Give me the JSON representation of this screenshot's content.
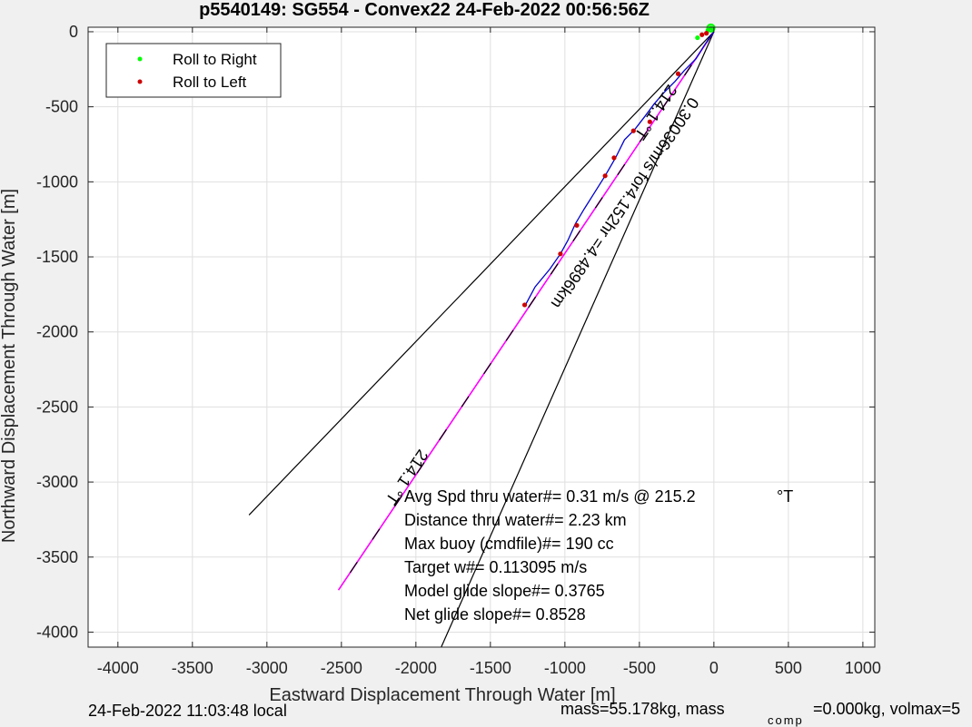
{
  "chart_data": {
    "type": "line",
    "title": "p5540149: SG554 - Convex22 24-Feb-2022 00:56:56Z",
    "xlabel": "Eastward Displacement Through Water [m]",
    "ylabel": "Northward Displacement Through Water [m]",
    "xlim": [
      -4200,
      1080
    ],
    "ylim": [
      -4100,
      30
    ],
    "xticks": [
      -4000,
      -3500,
      -3000,
      -2500,
      -2000,
      -1500,
      -1000,
      -500,
      0,
      500,
      1000
    ],
    "yticks": [
      0,
      -500,
      -1000,
      -1500,
      -2000,
      -2500,
      -3000,
      -3500,
      -4000
    ],
    "grid": true,
    "legend": {
      "placement": "top-left",
      "entries": [
        "Roll to Right",
        "Roll to Left"
      ]
    },
    "colors": {
      "roll_right": "#00ff00",
      "roll_left": "#cc0000",
      "track": "#0000cc",
      "heading": "#ff00ff",
      "cone": "#000000"
    },
    "track": {
      "x": [
        0,
        -30,
        -70,
        -120,
        -200,
        -260,
        -330,
        -400,
        -460,
        -530,
        -600,
        -660,
        -730,
        -800,
        -870,
        -930,
        -980,
        -1030,
        -1100,
        -1200,
        -1270
      ],
      "y": [
        0,
        -40,
        -100,
        -180,
        -260,
        -330,
        -400,
        -480,
        -560,
        -650,
        -720,
        -840,
        -960,
        -1070,
        -1180,
        -1280,
        -1390,
        -1480,
        -1580,
        -1700,
        -1830
      ]
    },
    "roll_right_points": {
      "x": [
        -10,
        -20,
        -40,
        -110
      ],
      "y": [
        20,
        25,
        10,
        -40
      ]
    },
    "roll_left_points": {
      "x": [
        -50,
        -80,
        -240,
        -430,
        -540,
        -670,
        -730,
        -920,
        -1030,
        -1270
      ],
      "y": [
        -10,
        -20,
        -280,
        -600,
        -660,
        -840,
        -960,
        -1290,
        -1480,
        -1820
      ]
    },
    "heading_line": {
      "x": [
        0,
        -2520
      ],
      "y": [
        0,
        -3720
      ]
    },
    "cone_lines": [
      {
        "x": [
          0,
          -3120
        ],
        "y": [
          0,
          -3220
        ]
      },
      {
        "x": [
          0,
          -1830
        ],
        "y": [
          0,
          -4100
        ]
      }
    ],
    "rotated_labels": [
      "214.1 °T",
      "0.30036m/s for4.152hr =4.4896km",
      "214.1 °T"
    ],
    "annotations": [
      "Avg Spd thru water#=  0.31 m/s @ 215.2",
      "°T",
      "Distance thru water#=  2.23 km",
      "Max buoy (cmdfile)#= 190 cc",
      "Target w#= 0.113095 m/s",
      "Model glide slope#= 0.3765",
      "Net glide slope#= 0.8528"
    ]
  },
  "footer": {
    "timestamp": "24-Feb-2022 11:03:48 local",
    "mass": "mass=55.178kg, mass",
    "mass_sub": "comp",
    "mass_rest": "=0.000kg, volmax=5"
  }
}
